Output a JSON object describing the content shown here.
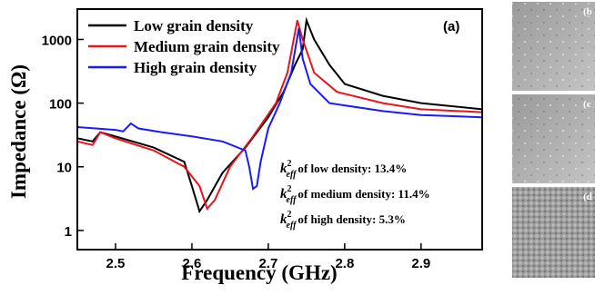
{
  "chart_data": {
    "type": "line",
    "panel_label": "(a)",
    "xlabel": "Frequency (GHz)",
    "ylabel": "Impedance (Ω)",
    "xlim": [
      2.45,
      2.98
    ],
    "xticks": [
      2.5,
      2.6,
      2.7,
      2.8,
      2.9
    ],
    "ylim": [
      0.5,
      3000
    ],
    "yticks": [
      1,
      10,
      100,
      1000
    ],
    "yscale": "log",
    "legend": "upper left",
    "series": [
      {
        "name": "Low grain density",
        "color": "#000000",
        "x": [
          2.45,
          2.47,
          2.48,
          2.5,
          2.55,
          2.59,
          2.6,
          2.61,
          2.62,
          2.64,
          2.67,
          2.7,
          2.72,
          2.735,
          2.745,
          2.75,
          2.76,
          2.78,
          2.8,
          2.85,
          2.9,
          2.98
        ],
        "values": [
          28,
          25,
          35,
          30,
          20,
          12,
          5,
          2,
          3,
          8,
          20,
          60,
          150,
          400,
          700,
          2000,
          1000,
          400,
          200,
          130,
          100,
          80
        ]
      },
      {
        "name": "Medium grain density",
        "color": "#e8141c",
        "x": [
          2.45,
          2.47,
          2.48,
          2.5,
          2.55,
          2.59,
          2.61,
          2.62,
          2.63,
          2.65,
          2.68,
          2.71,
          2.725,
          2.738,
          2.745,
          2.76,
          2.79,
          2.85,
          2.9,
          2.98
        ],
        "values": [
          25,
          22,
          35,
          28,
          18,
          10,
          5,
          2.2,
          3,
          10,
          30,
          100,
          300,
          2000,
          1000,
          300,
          150,
          100,
          80,
          72
        ]
      },
      {
        "name": "High grain density",
        "color": "#1a1aff",
        "x": [
          2.45,
          2.5,
          2.51,
          2.52,
          2.53,
          2.56,
          2.6,
          2.64,
          2.67,
          2.675,
          2.68,
          2.685,
          2.69,
          2.7,
          2.715,
          2.73,
          2.74,
          2.745,
          2.755,
          2.78,
          2.85,
          2.9,
          2.98
        ],
        "values": [
          42,
          38,
          36,
          48,
          40,
          35,
          30,
          25,
          18,
          10,
          4.5,
          5,
          12,
          40,
          100,
          300,
          1500,
          500,
          200,
          100,
          75,
          65,
          60
        ]
      }
    ],
    "annotations": [
      {
        "symbol": "k",
        "sup": "2",
        "sub": "eff",
        "text": "of low density: 13.4%"
      },
      {
        "symbol": "k",
        "sup": "2",
        "sub": "eff",
        "text": "of medium density: 11.4%"
      },
      {
        "symbol": "k",
        "sup": "2",
        "sub": "eff",
        "text": "of high density: 5.3%"
      }
    ],
    "side_panel_labels": [
      "(b",
      "(c",
      "(d"
    ]
  }
}
